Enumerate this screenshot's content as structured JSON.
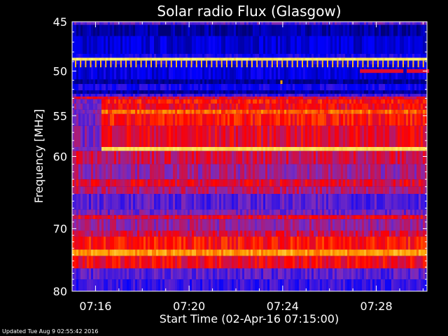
{
  "chart_data": {
    "type": "heatmap",
    "title": "Solar radio Flux (Glasgow)",
    "xlabel": "Start Time (02-Apr-16 07:15:00)",
    "ylabel": "Frequency [MHz]",
    "x_range": [
      "07:15:00",
      "07:30:10"
    ],
    "y_range": [
      45,
      80
    ],
    "y_scale": "log",
    "x_ticks": [
      "07:16",
      "07:20",
      "07:24",
      "07:28"
    ],
    "x_tick_minutes": [
      1,
      5,
      9,
      13
    ],
    "y_ticks": [
      45,
      50,
      55,
      60,
      70,
      80
    ],
    "colormap": [
      "#00007a",
      "#0000ff",
      "#7a2cbe",
      "#ff0000",
      "#ffa000",
      "#ffff80"
    ],
    "bands": [
      {
        "f0": 45.0,
        "f1": 45.3,
        "level": 0.35
      },
      {
        "f0": 45.3,
        "f1": 46.4,
        "level": 0.06
      },
      {
        "f0": 46.4,
        "f1": 48.2,
        "level": 0.14
      },
      {
        "f0": 48.2,
        "f1": 48.6,
        "level": 0.22
      },
      {
        "f0": 48.6,
        "f1": 48.9,
        "level": 0.96
      },
      {
        "f0": 48.9,
        "f1": 49.3,
        "level": 0.2
      },
      {
        "f0": 49.3,
        "f1": 50.9,
        "level": 0.16
      },
      {
        "f0": 50.9,
        "f1": 51.4,
        "level": 0.04
      },
      {
        "f0": 51.4,
        "f1": 52.1,
        "level": 0.22
      },
      {
        "f0": 52.1,
        "f1": 52.5,
        "level": 0.05
      },
      {
        "f0": 52.5,
        "f1": 52.8,
        "level": 0.3
      },
      {
        "f0": 52.8,
        "f1": 53.1,
        "level": 0.55
      },
      {
        "f0": 53.1,
        "f1": 53.6,
        "level": 0.62
      },
      {
        "f0": 53.6,
        "f1": 54.3,
        "level": 0.58
      },
      {
        "f0": 54.3,
        "f1": 54.8,
        "level": 0.72
      },
      {
        "f0": 54.8,
        "f1": 56.2,
        "level": 0.62
      },
      {
        "f0": 56.2,
        "f1": 58.8,
        "level": 0.56
      },
      {
        "f0": 58.8,
        "f1": 59.3,
        "level": 0.93
      },
      {
        "f0": 59.3,
        "f1": 61.0,
        "level": 0.52
      },
      {
        "f0": 61.0,
        "f1": 63.0,
        "level": 0.45
      },
      {
        "f0": 63.0,
        "f1": 64.0,
        "level": 0.55
      },
      {
        "f0": 64.0,
        "f1": 65.0,
        "level": 0.48
      },
      {
        "f0": 65.0,
        "f1": 67.2,
        "level": 0.34
      },
      {
        "f0": 67.2,
        "f1": 68.0,
        "level": 0.38
      },
      {
        "f0": 68.0,
        "f1": 68.6,
        "level": 0.56
      },
      {
        "f0": 68.6,
        "f1": 70.3,
        "level": 0.44
      },
      {
        "f0": 70.3,
        "f1": 71.2,
        "level": 0.52
      },
      {
        "f0": 71.2,
        "f1": 73.2,
        "level": 0.62
      },
      {
        "f0": 73.2,
        "f1": 74.2,
        "level": 0.8
      },
      {
        "f0": 74.2,
        "f1": 76.2,
        "level": 0.58
      },
      {
        "f0": 76.2,
        "f1": 78.0,
        "level": 0.34
      },
      {
        "f0": 78.0,
        "f1": 80.0,
        "level": 0.28
      }
    ],
    "features": [
      {
        "kind": "comb",
        "f0": 48.9,
        "f1": 49.6,
        "level": 0.85,
        "note": "periodic spikes along lower edge of 49 MHz line"
      },
      {
        "kind": "dashes",
        "f0": 49.8,
        "f1": 50.2,
        "level": 0.55,
        "minutes": [
          12.3,
          13.2,
          14.3
        ]
      },
      {
        "kind": "spot",
        "f0": 51.0,
        "f1": 51.4,
        "minute": 8.9,
        "level": 0.8
      },
      {
        "kind": "early_gap",
        "t0_minutes": 0,
        "t1_minutes": 1.2,
        "f0": 53.0,
        "f1": 60.5,
        "level": 0.4
      }
    ]
  },
  "footer": {
    "updated": "Updated Tue Aug  9 02:55:42 2016"
  }
}
